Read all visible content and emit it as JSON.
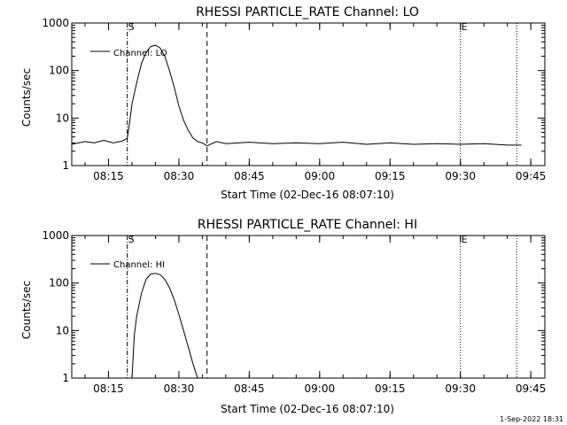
{
  "chart_data": [
    {
      "type": "line",
      "title": "RHESSI PARTICLE_RATE Channel: LO",
      "xlabel": "Start Time (02-Dec-16 08:07:10)",
      "ylabel": "Counts/sec",
      "yscale": "log",
      "ylim": [
        1,
        1000
      ],
      "yticks": [
        "1",
        "10",
        "100",
        "1000"
      ],
      "xticks": [
        "08:15",
        "08:30",
        "08:45",
        "09:00",
        "09:15",
        "09:30",
        "09:45"
      ],
      "legend": {
        "label": "Channel: LO",
        "placement": "top-left"
      },
      "markers": [
        {
          "time": "08:19:00",
          "style": "dash-dot",
          "label": "S"
        },
        {
          "time": "08:36:00",
          "style": "dashed",
          "label": ""
        },
        {
          "time": "09:30:00",
          "style": "dotted",
          "label": "E"
        },
        {
          "time": "09:42:00",
          "style": "dotted",
          "label": ""
        }
      ],
      "series": [
        {
          "name": "Channel: LO",
          "x": [
            "08:07:10",
            "08:10:00",
            "08:12:00",
            "08:14:00",
            "08:16:00",
            "08:18:00",
            "08:19:00",
            "08:19:30",
            "08:20:00",
            "08:21:00",
            "08:22:00",
            "08:23:00",
            "08:24:00",
            "08:25:00",
            "08:26:00",
            "08:27:00",
            "08:28:00",
            "08:29:00",
            "08:30:00",
            "08:31:00",
            "08:32:00",
            "08:33:00",
            "08:34:00",
            "08:35:00",
            "08:36:00",
            "08:38:00",
            "08:40:00",
            "08:45:00",
            "08:50:00",
            "08:55:00",
            "09:00:00",
            "09:05:00",
            "09:10:00",
            "09:15:00",
            "09:20:00",
            "09:25:00",
            "09:30:00",
            "09:35:00",
            "09:40:00",
            "09:43:00"
          ],
          "y": [
            2.8,
            3.2,
            3.0,
            3.4,
            3.0,
            3.3,
            3.8,
            8,
            20,
            55,
            140,
            240,
            320,
            340,
            300,
            200,
            100,
            45,
            18,
            9,
            5.5,
            3.8,
            3.2,
            3.0,
            2.6,
            3.2,
            2.9,
            3.1,
            2.9,
            3.0,
            2.9,
            3.1,
            2.8,
            3.0,
            2.8,
            2.9,
            2.8,
            2.9,
            2.7,
            2.7
          ]
        }
      ]
    },
    {
      "type": "line",
      "title": "RHESSI PARTICLE_RATE Channel: HI",
      "xlabel": "Start Time (02-Dec-16 08:07:10)",
      "ylabel": "Counts/sec",
      "yscale": "log",
      "ylim": [
        1,
        1000
      ],
      "yticks": [
        "1",
        "10",
        "100",
        "1000"
      ],
      "xticks": [
        "08:15",
        "08:30",
        "08:45",
        "09:00",
        "09:15",
        "09:30",
        "09:45"
      ],
      "legend": {
        "label": "Channel: HI",
        "placement": "top-left"
      },
      "markers": [
        {
          "time": "08:19:00",
          "style": "dash-dot",
          "label": "S"
        },
        {
          "time": "08:36:00",
          "style": "dashed",
          "label": ""
        },
        {
          "time": "09:30:00",
          "style": "dotted",
          "label": "E"
        },
        {
          "time": "09:42:00",
          "style": "dotted",
          "label": ""
        }
      ],
      "series": [
        {
          "name": "Channel: HI",
          "x": [
            "08:20:00",
            "08:20:30",
            "08:21:00",
            "08:22:00",
            "08:23:00",
            "08:24:00",
            "08:25:00",
            "08:26:00",
            "08:27:00",
            "08:28:00",
            "08:29:00",
            "08:30:00",
            "08:31:00",
            "08:32:00",
            "08:33:00",
            "08:34:00"
          ],
          "y": [
            1,
            8,
            20,
            60,
            120,
            155,
            160,
            150,
            120,
            80,
            45,
            22,
            10,
            4.5,
            2,
            1
          ]
        }
      ]
    }
  ],
  "footer": {
    "timestamp": "1-Sep-2022 18:31"
  }
}
